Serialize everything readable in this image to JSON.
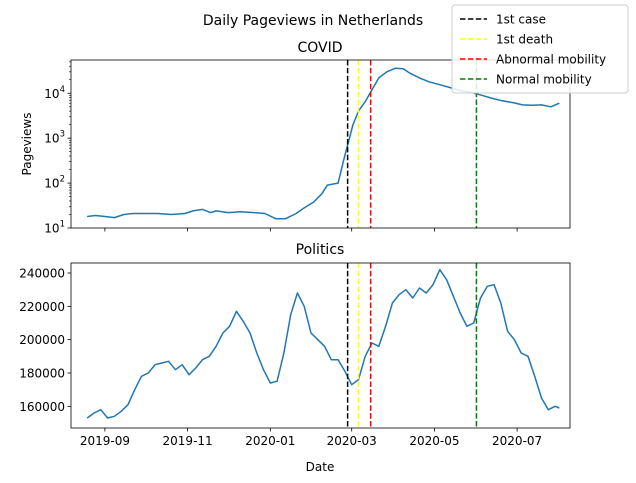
{
  "figure": {
    "suptitle": "Daily Pageviews in Netherlands",
    "xlabel": "Date"
  },
  "legend": {
    "placement": "top-right",
    "entries": [
      {
        "label": "1st case",
        "color": "#000000"
      },
      {
        "label": "1st death",
        "color": "#ffff00"
      },
      {
        "label": "Abnormal mobility",
        "color": "#ff0000"
      },
      {
        "label": "Normal mobility",
        "color": "#008000"
      }
    ]
  },
  "chart_data": [
    {
      "type": "line",
      "title": "COVID",
      "xlabel": "",
      "ylabel": "Pageviews",
      "yscale": "log",
      "ylim": [
        10,
        55000
      ],
      "xlim": [
        "2019-08-07",
        "2020-08-09"
      ],
      "yticks": [
        10,
        100,
        1000,
        10000
      ],
      "ytick_labels": [
        "10",
        "10",
        "10",
        "10"
      ],
      "ytick_exponents": [
        "1",
        "2",
        "3",
        "4"
      ],
      "xticks": [
        "2019-09-01",
        "2019-11-01",
        "2020-01-01",
        "2020-03-01",
        "2020-05-01",
        "2020-07-01"
      ],
      "xtick_labels": [],
      "series_color": "#1f77b4",
      "events": [
        {
          "label": "1st case",
          "date": "2020-02-27",
          "color": "#000000"
        },
        {
          "label": "1st death",
          "date": "2020-03-06",
          "color": "#ffff00"
        },
        {
          "label": "Abnormal mobility",
          "date": "2020-03-15",
          "color": "#ff0000"
        },
        {
          "label": "Normal mobility",
          "date": "2020-06-01",
          "color": "#008000"
        }
      ],
      "x": [
        "2019-08-19",
        "2019-08-25",
        "2019-09-01",
        "2019-09-08",
        "2019-09-15",
        "2019-09-22",
        "2019-10-01",
        "2019-10-10",
        "2019-10-20",
        "2019-10-30",
        "2019-11-05",
        "2019-11-12",
        "2019-11-18",
        "2019-11-22",
        "2019-12-01",
        "2019-12-10",
        "2019-12-20",
        "2019-12-28",
        "2020-01-05",
        "2020-01-12",
        "2020-01-20",
        "2020-01-26",
        "2020-02-02",
        "2020-02-08",
        "2020-02-12",
        "2020-02-16",
        "2020-02-20",
        "2020-02-24",
        "2020-02-27",
        "2020-03-02",
        "2020-03-06",
        "2020-03-11",
        "2020-03-16",
        "2020-03-21",
        "2020-03-27",
        "2020-04-02",
        "2020-04-08",
        "2020-04-13",
        "2020-04-20",
        "2020-04-27",
        "2020-05-05",
        "2020-05-12",
        "2020-05-20",
        "2020-05-28",
        "2020-06-05",
        "2020-06-12",
        "2020-06-20",
        "2020-06-28",
        "2020-07-05",
        "2020-07-12",
        "2020-07-19",
        "2020-07-26",
        "2020-08-01"
      ],
      "values": [
        18,
        19,
        18,
        17,
        20,
        21,
        21,
        21,
        20,
        21,
        24,
        26,
        22,
        24,
        22,
        23,
        22,
        21,
        16,
        16,
        21,
        28,
        38,
        58,
        90,
        95,
        100,
        320,
        700,
        2000,
        4000,
        6500,
        12000,
        22000,
        30000,
        36000,
        35000,
        28000,
        22000,
        18000,
        15500,
        13500,
        11500,
        10500,
        9000,
        7800,
        6800,
        6200,
        5500,
        5400,
        5500,
        5000,
        6000
      ]
    },
    {
      "type": "line",
      "title": "Politics",
      "xlabel": "Date",
      "ylabel": "",
      "ylim": [
        147000,
        246000
      ],
      "xlim": [
        "2019-08-07",
        "2020-08-09"
      ],
      "yticks": [
        160000,
        180000,
        200000,
        220000,
        240000
      ],
      "ytick_labels": [
        "160000",
        "180000",
        "200000",
        "220000",
        "240000"
      ],
      "xticks": [
        "2019-09-01",
        "2019-11-01",
        "2020-01-01",
        "2020-03-01",
        "2020-05-01",
        "2020-07-01"
      ],
      "xtick_labels": [
        "2019-09",
        "2019-11",
        "2020-01",
        "2020-03",
        "2020-05",
        "2020-07"
      ],
      "series_color": "#1f77b4",
      "events": [
        {
          "label": "1st case",
          "date": "2020-02-27",
          "color": "#000000"
        },
        {
          "label": "1st death",
          "date": "2020-03-06",
          "color": "#ffff00"
        },
        {
          "label": "Abnormal mobility",
          "date": "2020-03-15",
          "color": "#ff0000"
        },
        {
          "label": "Normal mobility",
          "date": "2020-06-01",
          "color": "#008000"
        }
      ],
      "x": [
        "2019-08-19",
        "2019-08-24",
        "2019-08-29",
        "2019-09-03",
        "2019-09-08",
        "2019-09-13",
        "2019-09-18",
        "2019-09-23",
        "2019-09-28",
        "2019-10-03",
        "2019-10-08",
        "2019-10-13",
        "2019-10-18",
        "2019-10-23",
        "2019-10-28",
        "2019-11-02",
        "2019-11-07",
        "2019-11-12",
        "2019-11-17",
        "2019-11-22",
        "2019-11-27",
        "2019-12-02",
        "2019-12-07",
        "2019-12-12",
        "2019-12-17",
        "2019-12-22",
        "2019-12-27",
        "2020-01-01",
        "2020-01-06",
        "2020-01-11",
        "2020-01-16",
        "2020-01-21",
        "2020-01-26",
        "2020-01-31",
        "2020-02-05",
        "2020-02-10",
        "2020-02-15",
        "2020-02-20",
        "2020-02-25",
        "2020-03-01",
        "2020-03-06",
        "2020-03-11",
        "2020-03-16",
        "2020-03-21",
        "2020-03-26",
        "2020-03-31",
        "2020-04-05",
        "2020-04-10",
        "2020-04-15",
        "2020-04-20",
        "2020-04-25",
        "2020-04-30",
        "2020-05-05",
        "2020-05-10",
        "2020-05-15",
        "2020-05-20",
        "2020-05-25",
        "2020-05-30",
        "2020-06-04",
        "2020-06-09",
        "2020-06-14",
        "2020-06-19",
        "2020-06-24",
        "2020-06-29",
        "2020-07-04",
        "2020-07-09",
        "2020-07-14",
        "2020-07-19",
        "2020-07-24",
        "2020-07-29",
        "2020-08-01"
      ],
      "values": [
        153000,
        156000,
        158000,
        153000,
        154000,
        157000,
        161000,
        170000,
        178000,
        180000,
        185000,
        186000,
        187000,
        182000,
        185000,
        179000,
        183000,
        188000,
        190000,
        196000,
        204000,
        208000,
        217000,
        211000,
        204000,
        192000,
        182000,
        174000,
        175000,
        192000,
        215000,
        228000,
        220000,
        204000,
        200000,
        196000,
        188000,
        188000,
        181000,
        173000,
        176000,
        190000,
        198000,
        196000,
        208000,
        222000,
        227000,
        230000,
        225000,
        231000,
        228000,
        233000,
        242000,
        236000,
        226000,
        216000,
        208000,
        210000,
        225000,
        232000,
        233000,
        222000,
        205000,
        200000,
        192000,
        190000,
        178000,
        165000,
        158000,
        160000,
        159000
      ]
    }
  ]
}
